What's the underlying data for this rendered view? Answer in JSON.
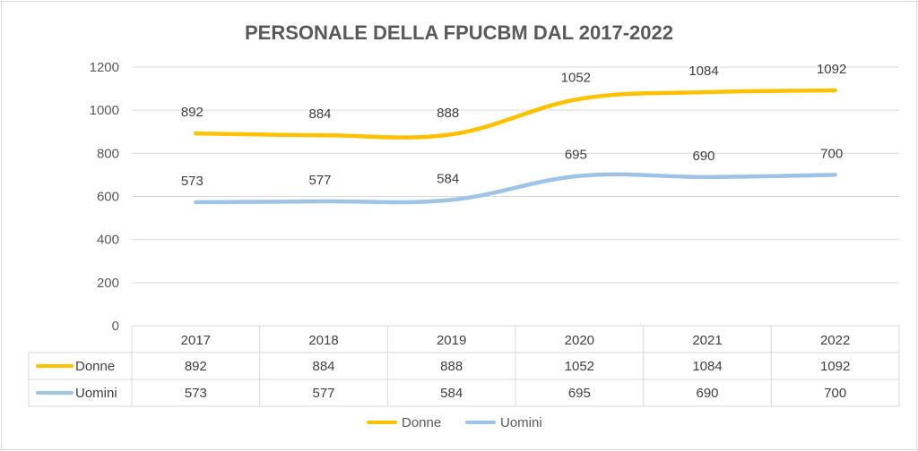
{
  "chart_data": {
    "type": "line",
    "title": "PERSONALE DELLA FPUCBM DAL 2017-2022",
    "categories": [
      "2017",
      "2018",
      "2019",
      "2020",
      "2021",
      "2022"
    ],
    "series": [
      {
        "name": "Donne",
        "values": [
          892,
          884,
          888,
          1052,
          1084,
          1092
        ],
        "color": "#FFC000"
      },
      {
        "name": "Uomini",
        "values": [
          573,
          577,
          584,
          695,
          690,
          700
        ],
        "color": "#9DC3E6"
      }
    ],
    "ylim": [
      0,
      1200
    ],
    "yticks": [
      "0",
      "200",
      "400",
      "600",
      "800",
      "1000",
      "1200"
    ],
    "grid": true,
    "data_table": true,
    "legend_position": "bottom"
  }
}
